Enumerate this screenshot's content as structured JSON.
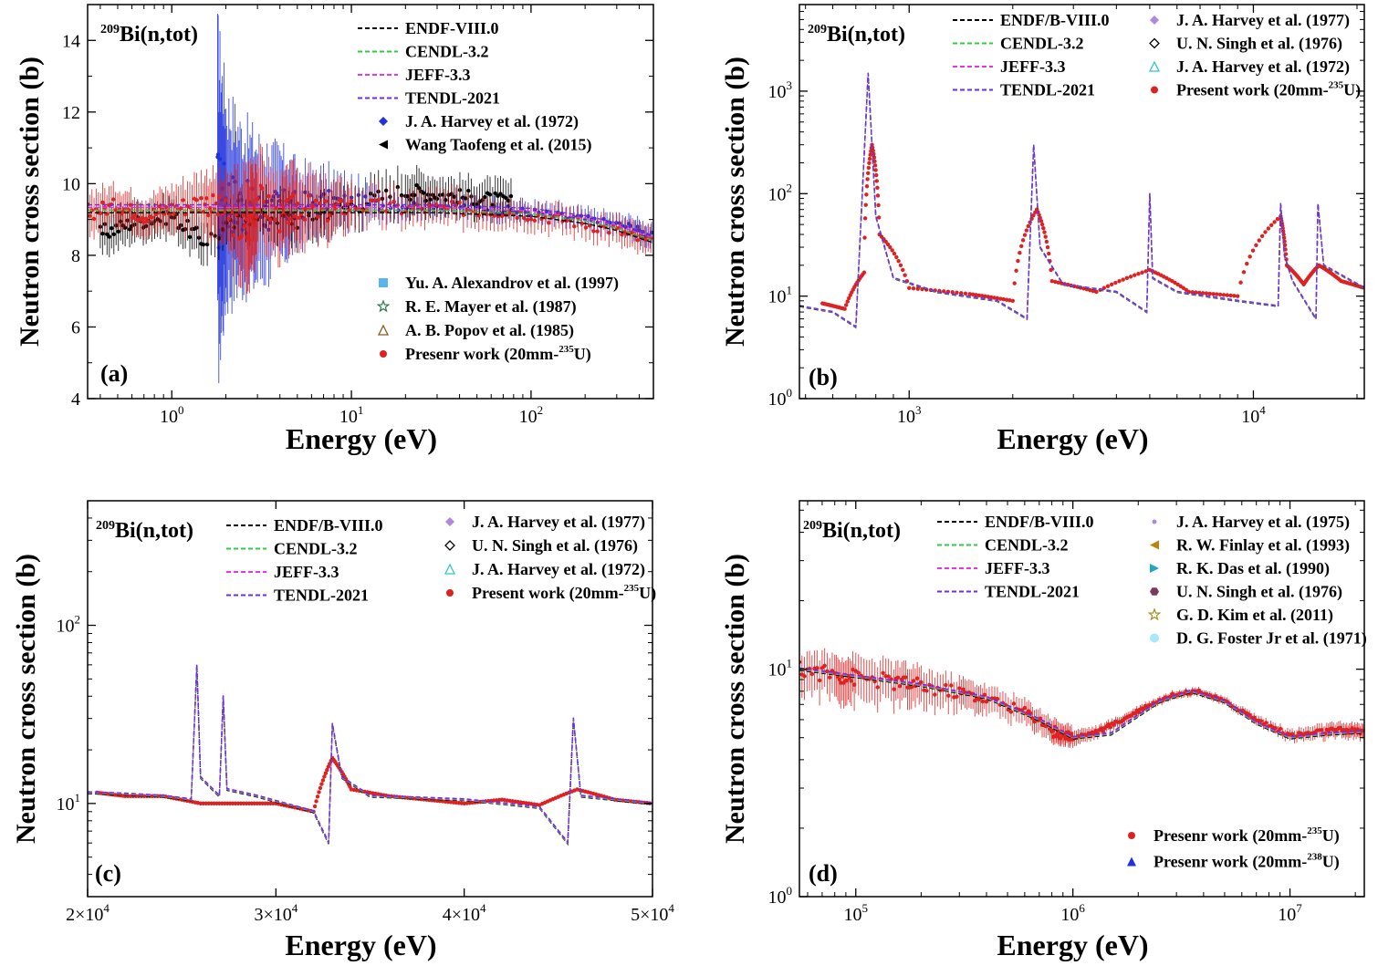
{
  "chart_data": [
    {
      "panel": "(a)",
      "type": "scatter",
      "title": "209Bi(n,tot)",
      "title_parts": {
        "mass": "209",
        "symbol": "Bi(n,tot)"
      },
      "xlabel": "Energy (eV)",
      "ylabel": "Neutron cross section (b)",
      "x_scale": "log",
      "y_scale": "linear",
      "xlim": [
        0.34,
        480
      ],
      "ylim": [
        4,
        15
      ],
      "x_ticks": [
        {
          "v": 1,
          "b": "10",
          "e": "0"
        },
        {
          "v": 10,
          "b": "10",
          "e": "1"
        },
        {
          "v": 100,
          "b": "10",
          "e": "2"
        }
      ],
      "y_ticks": [
        {
          "v": 4,
          "l": "4"
        },
        {
          "v": 6,
          "l": "6"
        },
        {
          "v": 8,
          "l": "8"
        },
        {
          "v": 10,
          "l": "10"
        },
        {
          "v": 12,
          "l": "12"
        },
        {
          "v": 14,
          "l": "14"
        }
      ],
      "legend_top": [
        {
          "name": "ENDF-VIII.0",
          "kind": "dash",
          "color": "#000000"
        },
        {
          "name": "CENDL-3.2",
          "kind": "dash",
          "color": "#2ecc40"
        },
        {
          "name": "JEFF-3.3",
          "kind": "dash",
          "color": "#e834e8"
        },
        {
          "name": "TENDL-2021",
          "kind": "dash",
          "color": "#6a2ee8"
        },
        {
          "name": "J. A. Harvey et al. (1972)",
          "kind": "diamond",
          "color": "#2233dd"
        },
        {
          "name": "Wang Taofeng et al. (2015)",
          "kind": "tri-left",
          "color": "#000000"
        }
      ],
      "legend_bottom": [
        {
          "name": "Yu. A. Alexandrov et al. (1997)",
          "kind": "square",
          "color": "#5ab4ee"
        },
        {
          "name": "R. E. Mayer et al. (1987)",
          "kind": "star",
          "color": "#2a7a4a"
        },
        {
          "name": "A. B. Popov et al. (1985)",
          "kind": "tri-open",
          "color": "#8a5a1a"
        },
        {
          "name": "Presenr work  (20mm-",
          "suffix": "U)",
          "sup": "235",
          "kind": "dot",
          "color": "#dd2222"
        }
      ],
      "series": [
        {
          "name": "ENDF-VIII.0",
          "x": [
            0.34,
            1,
            3,
            10,
            30,
            100,
            200,
            300,
            480
          ],
          "y": [
            9.3,
            9.3,
            9.3,
            9.3,
            9.3,
            9.2,
            9.0,
            8.8,
            8.45
          ]
        },
        {
          "name": "J. A. Harvey et al. (1972)",
          "x": [
            1.8,
            2.0,
            2.4,
            3.0,
            4.0,
            5.0,
            8.0,
            15,
            30,
            60,
            100,
            200,
            350,
            480
          ],
          "y": [
            9.5,
            9.6,
            9.4,
            9.2,
            9.3,
            9.4,
            9.5,
            9.4,
            9.4,
            9.3,
            9.2,
            9.0,
            8.8,
            8.5
          ],
          "yerr": [
            4.0,
            2.5,
            2.0,
            1.8,
            1.4,
            1.0,
            0.8,
            0.4,
            0.3,
            0.3,
            0.3,
            0.3,
            0.3,
            0.3
          ]
        },
        {
          "name": "Wang Taofeng et al. (2015)",
          "x": [
            0.4,
            0.6,
            1.0,
            1.5,
            3.0,
            5.0,
            10,
            20,
            30,
            50,
            80
          ],
          "y": [
            8.6,
            8.9,
            9.1,
            8.4,
            9.2,
            9.0,
            9.4,
            9.8,
            9.7,
            9.6,
            9.5
          ],
          "yerr": [
            0.6,
            0.5,
            0.5,
            0.6,
            0.6,
            0.7,
            0.6,
            0.6,
            0.5,
            0.5,
            0.5
          ]
        },
        {
          "name": "Presenr work  (20mm-235U)",
          "x": [
            0.34,
            0.5,
            0.7,
            1.0,
            1.5,
            2.0,
            2.6,
            3.0,
            4.0,
            5.0,
            7.0,
            10,
            20,
            40,
            80,
            150,
            300,
            480
          ],
          "y": [
            9.2,
            9.4,
            9.1,
            9.3,
            9.5,
            9.2,
            8.6,
            9.6,
            9.0,
            9.4,
            9.2,
            9.4,
            9.3,
            9.3,
            9.2,
            9.0,
            8.7,
            8.3
          ],
          "yerr": [
            0.6,
            0.5,
            0.5,
            0.6,
            0.8,
            0.9,
            1.6,
            1.2,
            1.0,
            1.0,
            0.8,
            0.6,
            0.5,
            0.5,
            0.4,
            0.4,
            0.4,
            0.4
          ]
        }
      ]
    },
    {
      "panel": "(b)",
      "type": "scatter",
      "title": "209Bi(n,tot)",
      "title_parts": {
        "mass": "209",
        "symbol": "Bi(n,tot)"
      },
      "xlabel": "Energy (eV)",
      "ylabel": "Neutron cross section (b)",
      "x_scale": "log",
      "y_scale": "log",
      "xlim": [
        480,
        21000
      ],
      "ylim": [
        1,
        7000
      ],
      "x_ticks": [
        {
          "v": 1000,
          "b": "10",
          "e": "3"
        },
        {
          "v": 10000,
          "b": "10",
          "e": "4"
        }
      ],
      "y_ticks": [
        {
          "v": 1,
          "b": "10",
          "e": "0"
        },
        {
          "v": 10,
          "b": "10",
          "e": "1"
        },
        {
          "v": 100,
          "b": "10",
          "e": "2"
        },
        {
          "v": 1000,
          "b": "10",
          "e": "3"
        }
      ],
      "legend_top": [
        {
          "name": "ENDF/B-VIII.0",
          "kind": "dash",
          "color": "#000000"
        },
        {
          "name": "CENDL-3.2",
          "kind": "dash",
          "color": "#2ecc40"
        },
        {
          "name": "JEFF-3.3",
          "kind": "dash",
          "color": "#e834e8"
        },
        {
          "name": "TENDL-2021",
          "kind": "dash",
          "color": "#6a2ee8"
        },
        {
          "name": "J. A. Harvey et al. (1977)",
          "kind": "diamond",
          "color": "#b088e0"
        },
        {
          "name": "U. N. Singh et al. (1976)",
          "kind": "diamond-open",
          "color": "#000000"
        },
        {
          "name": "J. A. Harvey et al. (1972)",
          "kind": "tri-open",
          "color": "#30c8c8"
        },
        {
          "name": "Present work (20mm-",
          "suffix": "U)",
          "sup": "235",
          "kind": "dot",
          "color": "#dd2222"
        }
      ],
      "legend_bottom": [],
      "series": [
        {
          "name": "ENDF/B-VIII.0",
          "x": [
            480,
            600,
            700,
            760,
            800,
            900,
            1200,
            1800,
            2200,
            2300,
            2400,
            2800,
            4000,
            4900,
            5000,
            5100,
            6000,
            9000,
            11800,
            12000,
            12300,
            13000,
            15200,
            15400,
            16000,
            21000
          ],
          "y": [
            8,
            7,
            5,
            1500,
            60,
            15,
            11,
            9,
            6,
            300,
            30,
            13,
            11,
            7,
            100,
            15,
            11,
            9,
            8,
            80,
            25,
            14,
            6,
            80,
            20,
            12
          ]
        },
        {
          "name": "Present work (20mm-235U)",
          "x": [
            560,
            650,
            740,
            780,
            820,
            1000,
            1500,
            2000,
            2350,
            2600,
            3500,
            5000,
            6500,
            9000,
            12000,
            12500,
            14000,
            15500,
            18000,
            21000
          ],
          "y": [
            8.5,
            7.5,
            17,
            300,
            40,
            12,
            10.5,
            9,
            70,
            14,
            11,
            18,
            11,
            10,
            60,
            20,
            13,
            20,
            14,
            12
          ]
        }
      ]
    },
    {
      "panel": "(c)",
      "type": "scatter",
      "title": "209Bi(n,tot)",
      "title_parts": {
        "mass": "209",
        "symbol": "Bi(n,tot)"
      },
      "xlabel": "Energy (eV)",
      "ylabel": "Neutron cross section (b)",
      "x_scale": "linear",
      "y_scale": "log",
      "xlim": [
        20000,
        50000
      ],
      "ylim": [
        3,
        500
      ],
      "x_ticks": [
        {
          "v": 20000,
          "b": "2×10",
          "e": "4"
        },
        {
          "v": 30000,
          "b": "3×10",
          "e": "4"
        },
        {
          "v": 40000,
          "b": "4×10",
          "e": "4"
        },
        {
          "v": 50000,
          "b": "5×10",
          "e": "4"
        }
      ],
      "y_ticks": [
        {
          "v": 10,
          "b": "10",
          "e": "1"
        },
        {
          "v": 100,
          "b": "10",
          "e": "2"
        }
      ],
      "legend_top": [
        {
          "name": "ENDF/B-VIII.0",
          "kind": "dash",
          "color": "#000000"
        },
        {
          "name": "CENDL-3.2",
          "kind": "dash",
          "color": "#2ecc40"
        },
        {
          "name": "JEFF-3.3",
          "kind": "dash",
          "color": "#e834e8"
        },
        {
          "name": "TENDL-2021",
          "kind": "dash",
          "color": "#6a2ee8"
        },
        {
          "name": "J. A. Harvey et al. (1977)",
          "kind": "diamond",
          "color": "#b088e0"
        },
        {
          "name": "U. N. Singh et al. (1976)",
          "kind": "diamond-open",
          "color": "#000000"
        },
        {
          "name": "J. A. Harvey et al. (1972)",
          "kind": "tri-open",
          "color": "#30c8c8"
        },
        {
          "name": "Present work (20mm-",
          "suffix": "U)",
          "sup": "235",
          "kind": "dot",
          "color": "#dd2222"
        }
      ],
      "legend_bottom": [],
      "series": [
        {
          "name": "ENDF/B-VIII.0",
          "x": [
            20000,
            22000,
            24000,
            25500,
            25800,
            26000,
            27000,
            27200,
            27400,
            29000,
            32000,
            32800,
            33000,
            33500,
            35000,
            40000,
            44000,
            45500,
            45800,
            46200,
            50000
          ],
          "y": [
            11.5,
            11.3,
            11,
            10.5,
            60,
            14,
            11,
            40,
            12,
            11,
            9,
            6,
            28,
            14,
            11,
            10.5,
            9.5,
            6,
            30,
            11,
            10
          ]
        },
        {
          "name": "Present work (20mm-235U)",
          "x": [
            20500,
            22000,
            24000,
            26000,
            28000,
            30000,
            32000,
            33000,
            34000,
            36000,
            38000,
            40000,
            42000,
            44000,
            46000,
            48000,
            50000
          ],
          "y": [
            11.5,
            11,
            11,
            10,
            10,
            10,
            9,
            18,
            12,
            11,
            10.5,
            10,
            10.5,
            9.8,
            12,
            10.5,
            10
          ]
        }
      ]
    },
    {
      "panel": "(d)",
      "type": "scatter",
      "title": "209Bi(n,tot)",
      "title_parts": {
        "mass": "209",
        "symbol": "Bi(n,tot)"
      },
      "xlabel": "Energy (eV)",
      "ylabel": "Neutron cross section (b)",
      "x_scale": "log",
      "y_scale": "log",
      "xlim": [
        55000,
        22000000
      ],
      "ylim": [
        1,
        55
      ],
      "x_ticks": [
        {
          "v": 100000,
          "b": "10",
          "e": "5"
        },
        {
          "v": 1000000,
          "b": "10",
          "e": "6"
        },
        {
          "v": 10000000,
          "b": "10",
          "e": "7"
        }
      ],
      "y_ticks": [
        {
          "v": 1,
          "b": "10",
          "e": "0"
        },
        {
          "v": 10,
          "b": "10",
          "e": "1"
        }
      ],
      "legend_top": [
        {
          "name": "ENDF/B-VIII.0",
          "kind": "dash",
          "color": "#000000"
        },
        {
          "name": "CENDL-3.2",
          "kind": "dash",
          "color": "#2ecc40"
        },
        {
          "name": "JEFF-3.3",
          "kind": "dash",
          "color": "#e834e8"
        },
        {
          "name": "TENDL-2021",
          "kind": "dash",
          "color": "#6a2ee8"
        },
        {
          "name": "J. A. Harvey et al. (1975)",
          "kind": "dot-small",
          "color": "#b088e0"
        },
        {
          "name": "R. W. Finlay et al. (1993)",
          "kind": "tri-left",
          "color": "#b8860b"
        },
        {
          "name": "R. K. Das et al. (1990)",
          "kind": "tri-right",
          "color": "#20a8b8"
        },
        {
          "name": "U. N. Singh et al. (1976)",
          "kind": "hexagon",
          "color": "#7a3a5a"
        },
        {
          "name": "G. D. Kim et al. (2011)",
          "kind": "star",
          "color": "#a09020"
        },
        {
          "name": "D. G. Foster Jr et al. (1971)",
          "kind": "circle-fill",
          "color": "#a8e8f8"
        }
      ],
      "legend_bottom": [
        {
          "name": "Presenr work  (20mm-",
          "suffix": "U)",
          "sup": "235",
          "kind": "dot",
          "color": "#dd2222"
        },
        {
          "name": "Presenr work  (20mm-",
          "suffix": "U)",
          "sup": "238",
          "kind": "tri-up",
          "color": "#2233dd"
        }
      ],
      "series": [
        {
          "name": "ENDF/B-VIII.0",
          "x": [
            55000,
            100000,
            200000,
            400000,
            700000,
            1000000,
            1500000,
            2500000,
            3500000,
            5000000,
            7000000,
            10000000,
            15000000,
            22000000
          ],
          "y": [
            10,
            9.3,
            8.5,
            7.5,
            6,
            5,
            5.2,
            7.2,
            8,
            7.2,
            5.8,
            5,
            5.2,
            5.3
          ]
        },
        {
          "name": "Presenr work  (20mm-235U)",
          "x": [
            55000,
            80000,
            100000,
            150000,
            200000,
            300000,
            400000,
            600000,
            800000,
            1000000
          ],
          "y": [
            10,
            9.5,
            9.2,
            8.8,
            8.4,
            7.9,
            7.4,
            6.5,
            5.5,
            5.0
          ],
          "yerr": [
            2,
            2,
            2,
            1.8,
            1.6,
            1.2,
            1.0,
            0.8,
            0.6,
            0.5
          ]
        },
        {
          "name": "Presenr work  (20mm-238U)",
          "x": [
            800000,
            1000000,
            1300000,
            1700000,
            2200000,
            3000000,
            3800000,
            5000000,
            7000000,
            10000000,
            14000000,
            18000000,
            22000000
          ],
          "y": [
            5.2,
            5.0,
            5.3,
            6.0,
            6.9,
            7.8,
            8.0,
            7.2,
            6.0,
            5.1,
            5.3,
            5.4,
            5.3
          ],
          "yerr": [
            0.4,
            0.4,
            0.3,
            0.3,
            0.3,
            0.3,
            0.3,
            0.3,
            0.3,
            0.3,
            0.4,
            0.4,
            0.4
          ]
        }
      ]
    }
  ]
}
